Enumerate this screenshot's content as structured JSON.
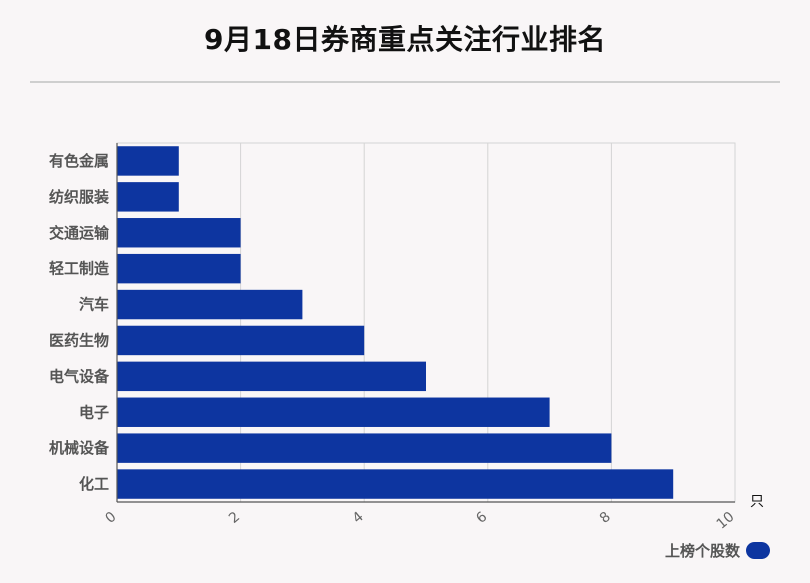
{
  "title": "9月18日券商重点关注行业排名",
  "colors": {
    "bar": "#0d35a0",
    "grid": "#d4d4d4",
    "axis": "#555555"
  },
  "legend": {
    "label": "上榜个股数"
  },
  "chart_data": {
    "type": "bar",
    "orientation": "horizontal",
    "categories": [
      "有色金属",
      "纺织服装",
      "交通运输",
      "轻工制造",
      "汽车",
      "医药生物",
      "电气设备",
      "电子",
      "机械设备",
      "化工"
    ],
    "series": [
      {
        "name": "上榜个股数",
        "values": [
          1,
          1,
          2,
          2,
          3,
          4,
          5,
          7,
          8,
          9
        ]
      }
    ],
    "xlim": [
      0,
      10
    ],
    "xticks": [
      0,
      2,
      4,
      6,
      8,
      10
    ],
    "xunit": "只",
    "grid": true,
    "legend_position": "bottom-right"
  }
}
